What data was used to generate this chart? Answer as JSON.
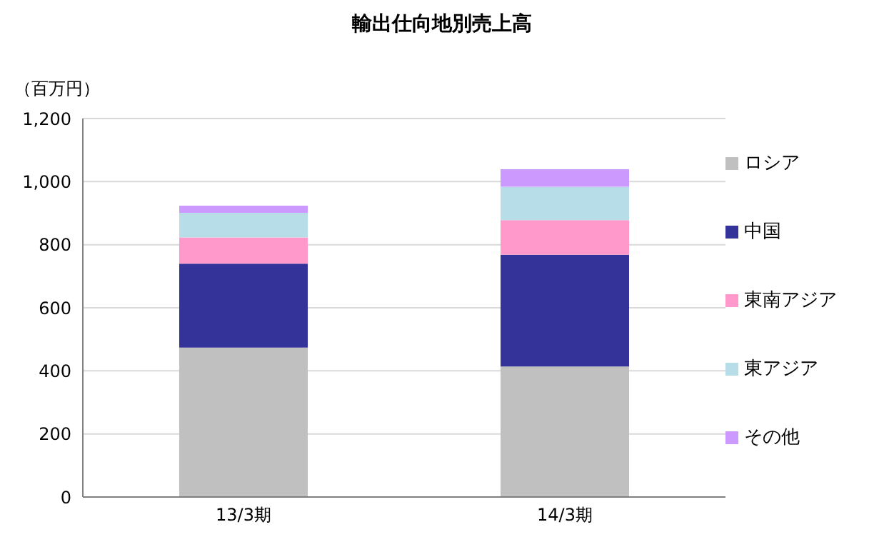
{
  "chart_data": {
    "type": "bar",
    "title": "輸出仕向地別売上高",
    "ylabel": "（百万円）",
    "categories": [
      "13/3期",
      "14/3期"
    ],
    "stacked": true,
    "grid": "y",
    "legend": "right",
    "ylim": [
      0,
      1200
    ],
    "yticks": [
      0,
      200,
      400,
      600,
      800,
      {
        "value": 1000,
        "label": "1,000"
      },
      {
        "value": 1200,
        "label": "1,200"
      }
    ],
    "series": [
      {
        "name": "ロシア",
        "color": "#c0c0c0",
        "values": [
          474,
          414
        ]
      },
      {
        "name": "中国",
        "color": "#333399",
        "values": [
          266,
          354
        ]
      },
      {
        "name": "東南アジア",
        "color": "#ff99cc",
        "values": [
          83,
          110
        ]
      },
      {
        "name": "東アジア",
        "color": "#b7dee8",
        "values": [
          78,
          106
        ]
      },
      {
        "name": "その他",
        "color": "#cc99ff",
        "values": [
          23,
          55
        ]
      }
    ]
  }
}
